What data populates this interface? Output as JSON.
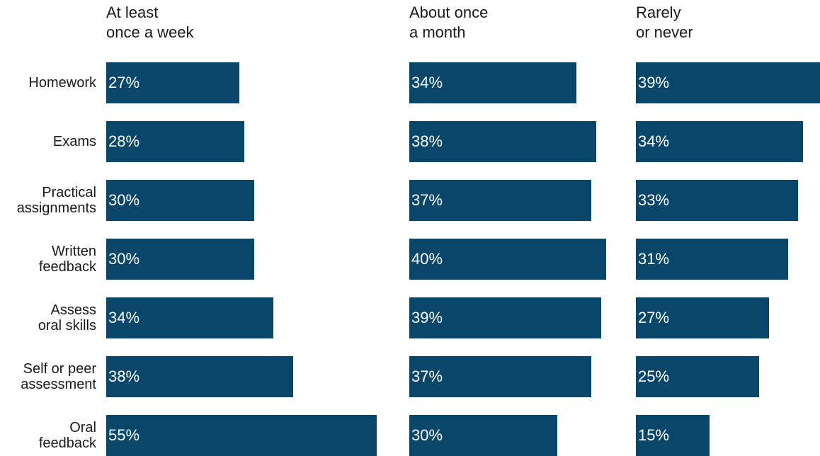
{
  "chart_data": {
    "type": "bar",
    "orientation": "horizontal",
    "layout": "small-multiples",
    "bar_color": "#08476a",
    "value_suffix": "%",
    "categories": [
      "Homework",
      "Exams",
      "Practical\nassignments",
      "Written\nfeedback",
      "Assess\noral skills",
      "Self or peer\nassessment",
      "Oral\nfeedback"
    ],
    "series": [
      {
        "name": "At least\nonce a week",
        "values": [
          27,
          28,
          30,
          30,
          34,
          38,
          55
        ]
      },
      {
        "name": "About once\na month",
        "values": [
          34,
          38,
          37,
          40,
          39,
          37,
          30
        ]
      },
      {
        "name": "Rarely\nor never",
        "values": [
          39,
          34,
          33,
          31,
          27,
          25,
          15
        ]
      }
    ]
  }
}
